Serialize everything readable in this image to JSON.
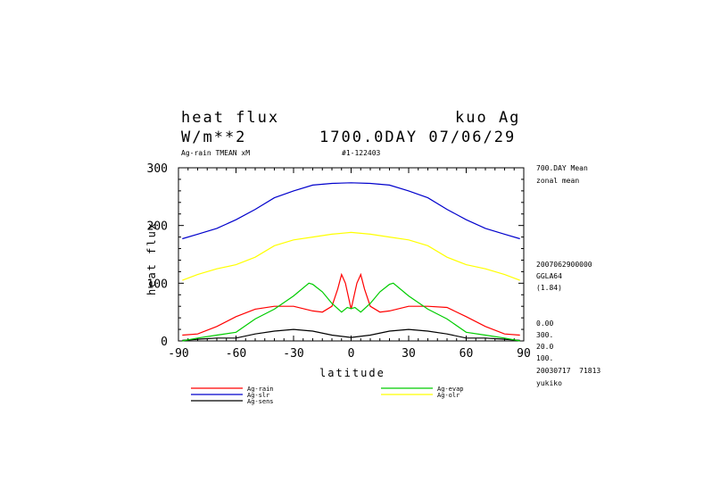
{
  "header": {
    "title": "heat flux",
    "units": "W/m**2",
    "model": "kuo Ag",
    "time_label": "1700.0DAY 07/06/29",
    "subtitle_left": "Ag-rain TMEAN xM",
    "subtitle_mid": "#1-122403"
  },
  "side_info": {
    "line1": "700.DAY Mean",
    "line2": "zonal mean",
    "line3": "2007062900000",
    "line4": "GGLA64",
    "line5": "(1.84)",
    "line6": "0.00",
    "line7": "300.",
    "line8": "20.0",
    "line9": "100.",
    "line10": "20030717  71813",
    "line11": "yukiko"
  },
  "chart_data": {
    "type": "line",
    "title": "heat flux",
    "xlabel": "latitude",
    "ylabel": "heat flux",
    "xlim": [
      -90,
      90
    ],
    "ylim": [
      0,
      300
    ],
    "x_ticks": [
      -90,
      -60,
      -30,
      0,
      30,
      60,
      90
    ],
    "x_tick_labels": [
      "-90",
      "-60",
      "-30",
      "0",
      "30",
      "60",
      "90"
    ],
    "y_ticks": [
      0,
      100,
      200,
      300
    ],
    "y_tick_labels": [
      "0",
      "100",
      "200",
      "300"
    ],
    "grid": false,
    "legend_position": "bottom",
    "series": [
      {
        "name": "Ag-rain",
        "color": "#ff0000",
        "x": [
          -88,
          -80,
          -70,
          -60,
          -50,
          -40,
          -30,
          -20,
          -15,
          -10,
          -7,
          -5,
          -3,
          0,
          3,
          5,
          7,
          10,
          15,
          20,
          30,
          40,
          50,
          60,
          70,
          80,
          88
        ],
        "y": [
          10,
          12,
          25,
          42,
          55,
          60,
          60,
          52,
          50,
          60,
          90,
          115,
          100,
          55,
          100,
          115,
          90,
          60,
          50,
          52,
          60,
          60,
          58,
          42,
          25,
          12,
          10
        ]
      },
      {
        "name": "Ag-sens",
        "color": "#000000",
        "x": [
          -88,
          -80,
          -70,
          -60,
          -50,
          -40,
          -30,
          -20,
          -10,
          0,
          10,
          20,
          30,
          40,
          50,
          60,
          70,
          80,
          88
        ],
        "y": [
          1,
          3,
          5,
          5,
          12,
          17,
          20,
          17,
          10,
          6,
          10,
          17,
          20,
          17,
          12,
          5,
          5,
          3,
          1
        ]
      },
      {
        "name": "Ag-evap",
        "color": "#00cc00",
        "x": [
          -88,
          -80,
          -70,
          -60,
          -50,
          -40,
          -30,
          -22,
          -20,
          -15,
          -10,
          -5,
          -2,
          0,
          2,
          5,
          10,
          15,
          20,
          22,
          30,
          40,
          50,
          60,
          70,
          80,
          88
        ],
        "y": [
          0,
          5,
          10,
          15,
          38,
          55,
          78,
          100,
          98,
          85,
          65,
          50,
          58,
          56,
          58,
          50,
          65,
          85,
          98,
          100,
          78,
          55,
          38,
          15,
          10,
          5,
          0
        ]
      },
      {
        "name": "Ag-olr",
        "color": "#ffff00",
        "x": [
          -88,
          -80,
          -70,
          -60,
          -50,
          -40,
          -30,
          -20,
          -10,
          0,
          10,
          20,
          30,
          40,
          50,
          60,
          70,
          80,
          88
        ],
        "y": [
          105,
          115,
          125,
          132,
          145,
          165,
          175,
          180,
          185,
          188,
          185,
          180,
          175,
          165,
          145,
          132,
          125,
          115,
          105
        ]
      },
      {
        "name": "Ag-slr",
        "color": "#0000cc",
        "x": [
          -88,
          -80,
          -70,
          -60,
          -50,
          -40,
          -30,
          -20,
          -10,
          0,
          10,
          20,
          30,
          40,
          50,
          60,
          70,
          80,
          88
        ],
        "y": [
          177,
          185,
          195,
          210,
          228,
          248,
          260,
          270,
          273,
          274,
          273,
          270,
          260,
          248,
          228,
          210,
          195,
          185,
          177
        ]
      }
    ],
    "legend_left": [
      {
        "name": "Ag-rain",
        "color": "#ff0000"
      },
      {
        "name": "Ag-slr",
        "color": "#0000cc"
      },
      {
        "name": "Ag-sens",
        "color": "#000000"
      }
    ],
    "legend_right": [
      {
        "name": "Ag-evap",
        "color": "#00cc00"
      },
      {
        "name": "Ag-olr",
        "color": "#ffff00"
      }
    ]
  }
}
